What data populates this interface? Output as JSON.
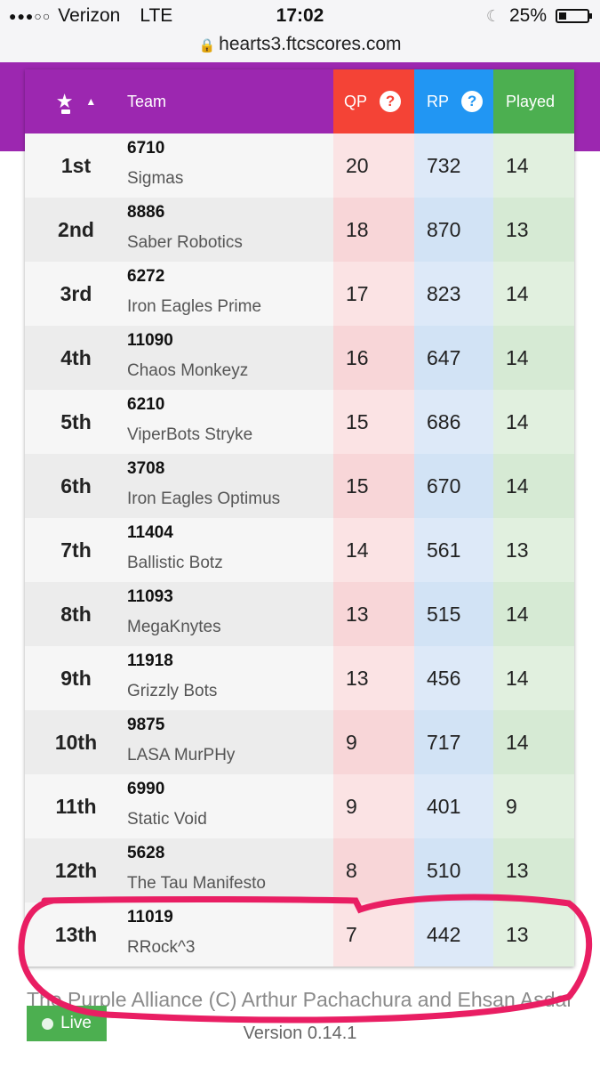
{
  "status_bar": {
    "carrier": "Verizon",
    "network": "LTE",
    "time": "17:02",
    "battery": "25%",
    "battery_level": 0.25,
    "url": "hearts3.ftcscores.com"
  },
  "table": {
    "headers": {
      "team": "Team",
      "qp": "QP",
      "rp": "RP",
      "played": "Played"
    },
    "rows": [
      {
        "rank": "1st",
        "number": "6710",
        "name": "Sigmas",
        "qp": "20",
        "rp": "732",
        "played": "14"
      },
      {
        "rank": "2nd",
        "number": "8886",
        "name": "Saber Robotics",
        "qp": "18",
        "rp": "870",
        "played": "13"
      },
      {
        "rank": "3rd",
        "number": "6272",
        "name": "Iron Eagles Prime",
        "qp": "17",
        "rp": "823",
        "played": "14"
      },
      {
        "rank": "4th",
        "number": "11090",
        "name": "Chaos Monkeyz",
        "qp": "16",
        "rp": "647",
        "played": "14"
      },
      {
        "rank": "5th",
        "number": "6210",
        "name": "ViperBots Stryke",
        "qp": "15",
        "rp": "686",
        "played": "14"
      },
      {
        "rank": "6th",
        "number": "3708",
        "name": "Iron Eagles Optimus",
        "qp": "15",
        "rp": "670",
        "played": "14"
      },
      {
        "rank": "7th",
        "number": "11404",
        "name": "Ballistic Botz",
        "qp": "14",
        "rp": "561",
        "played": "13"
      },
      {
        "rank": "8th",
        "number": "11093",
        "name": "MegaKnytes",
        "qp": "13",
        "rp": "515",
        "played": "14"
      },
      {
        "rank": "9th",
        "number": "11918",
        "name": "Grizzly Bots",
        "qp": "13",
        "rp": "456",
        "played": "14"
      },
      {
        "rank": "10th",
        "number": "9875",
        "name": "LASA MurPHy",
        "qp": "9",
        "rp": "717",
        "played": "14"
      },
      {
        "rank": "11th",
        "number": "6990",
        "name": "Static Void",
        "qp": "9",
        "rp": "401",
        "played": "9"
      },
      {
        "rank": "12th",
        "number": "5628",
        "name": "The Tau Manifesto",
        "qp": "8",
        "rp": "510",
        "played": "13"
      },
      {
        "rank": "13th",
        "number": "11019",
        "name": "RRock^3",
        "qp": "7",
        "rp": "442",
        "played": "13"
      }
    ]
  },
  "footer": {
    "credits": "The Purple Alliance (C) Arthur Pachachura and Ehsan Asdar",
    "version": "Version 0.14.1",
    "live_label": "Live"
  },
  "colors": {
    "purple": "#9c27b0",
    "qp": "#f44336",
    "rp": "#2196f3",
    "played": "#4caf50",
    "annotation": "#e91e63"
  },
  "icons": {
    "sort": "star-icon",
    "sort_direction": "caret-up-icon",
    "help": "question-circle-icon",
    "secure": "lock-icon",
    "do_not_disturb": "moon-icon"
  }
}
